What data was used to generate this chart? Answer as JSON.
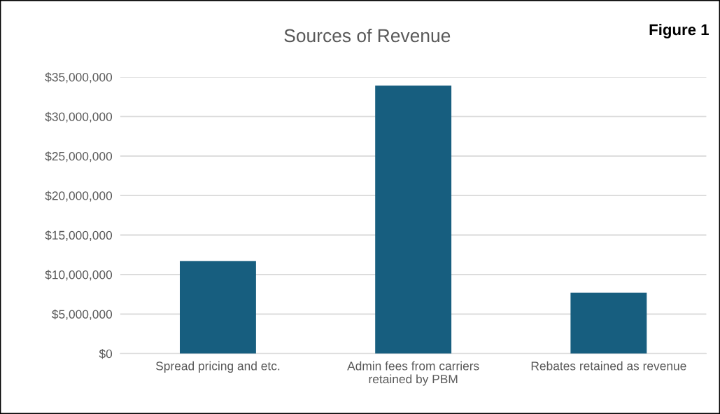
{
  "chart_data": {
    "type": "bar",
    "title": "Sources of Revenue",
    "annotations": [
      "Figure 1"
    ],
    "categories": [
      "Spread pricing and etc.",
      "Admin fees from carriers\nretained by PBM",
      "Rebates retained as revenue"
    ],
    "values": [
      11700000,
      33900000,
      7700000
    ],
    "color": "#175e7f",
    "ylim": [
      0,
      35000000
    ],
    "yticks": [
      {
        "value": 0,
        "label": "$0"
      },
      {
        "value": 5000000,
        "label": "$5,000,000"
      },
      {
        "value": 10000000,
        "label": "$10,000,000"
      },
      {
        "value": 15000000,
        "label": "$15,000,000"
      },
      {
        "value": 20000000,
        "label": "$20,000,000"
      },
      {
        "value": 25000000,
        "label": "$25,000,000"
      },
      {
        "value": 30000000,
        "label": "$30,000,000"
      },
      {
        "value": 35000000,
        "label": "$35,000,000"
      }
    ],
    "grid": "y"
  }
}
